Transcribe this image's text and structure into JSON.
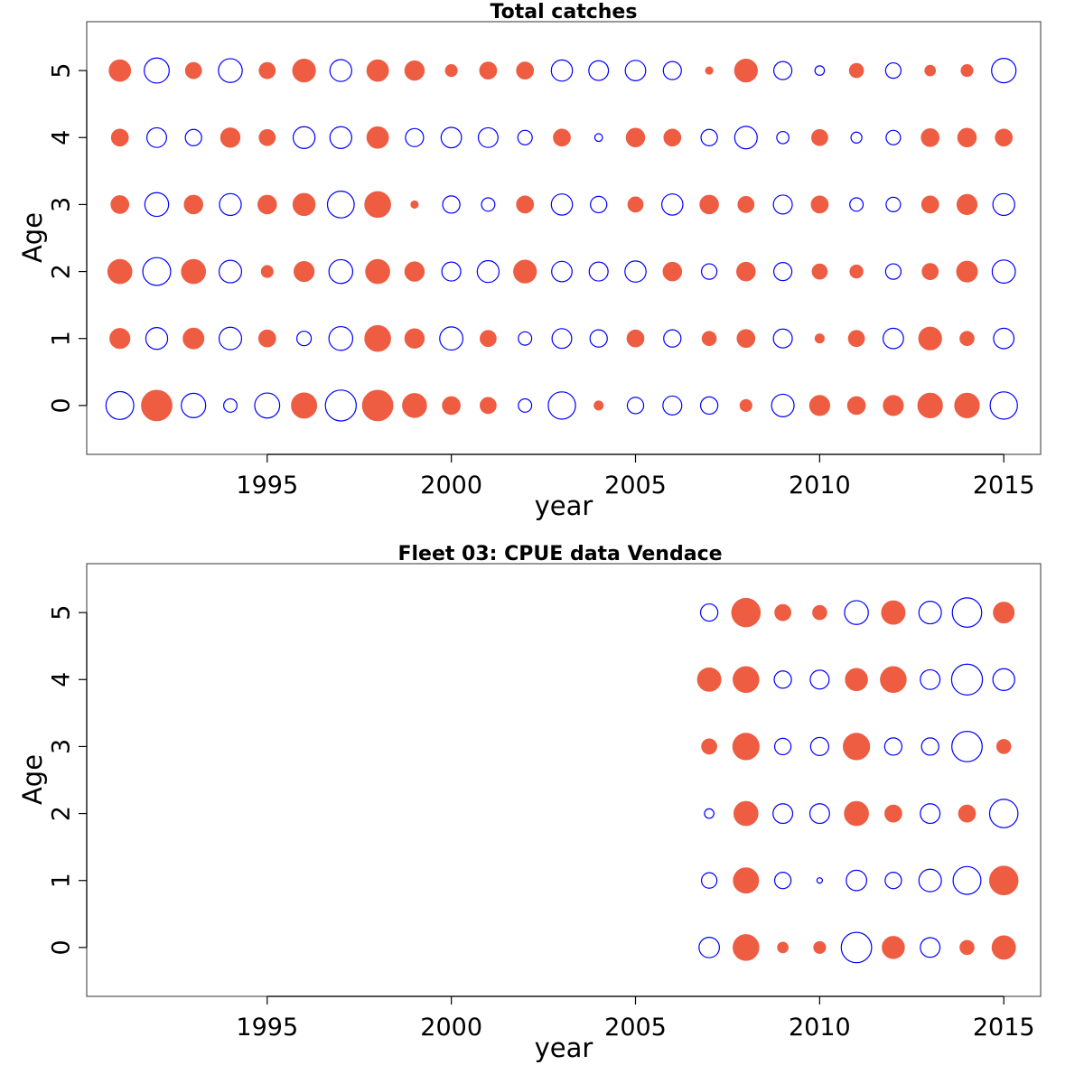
{
  "style": {
    "positive_color": "#EE5C42",
    "negative_color": "#0000FF",
    "frame_color": "#555555"
  },
  "chart_data": [
    {
      "type": "scatter",
      "subtype": "bubble",
      "title": "Total catches",
      "xlabel": "year",
      "ylabel": "Age",
      "xlim": [
        1990.1,
        2016.0
      ],
      "ylim": [
        -0.73,
        5.73
      ],
      "x_ticks": [
        1995,
        2000,
        2005,
        2010,
        2015
      ],
      "x_tick_labels": [
        "1995",
        "2000",
        "2005",
        "2010",
        "2015"
      ],
      "y_ticks": [
        0,
        1,
        2,
        3,
        4,
        5
      ],
      "y_tick_labels": [
        "0",
        "1",
        "2",
        "3",
        "4",
        "5"
      ],
      "grid": false,
      "legend": "none",
      "encoding": "residual magnitude as circle size; positive = filled red, negative = open blue",
      "years": [
        1991,
        1992,
        1993,
        1994,
        1995,
        1996,
        1997,
        1998,
        1999,
        2000,
        2001,
        2002,
        2003,
        2004,
        2005,
        2006,
        2007,
        2008,
        2009,
        2010,
        2011,
        2012,
        2013,
        2014,
        2015
      ],
      "ages": [
        0,
        1,
        2,
        3,
        4,
        5
      ],
      "residuals": [
        [
          -1.3,
          1.6,
          -1.0,
          -0.3,
          -1.05,
          1.1,
          -1.6,
          1.6,
          1.0,
          0.55,
          0.45,
          -0.3,
          -1.25,
          0.15,
          -0.45,
          -0.6,
          -0.5,
          0.25,
          -0.85,
          0.7,
          0.55,
          0.7,
          1.05,
          1.05,
          -1.25
        ],
        [
          0.7,
          -0.8,
          0.75,
          -0.85,
          0.5,
          -0.35,
          -0.95,
          1.15,
          0.65,
          -0.9,
          0.45,
          -0.3,
          -0.65,
          -0.5,
          0.5,
          -0.5,
          0.35,
          0.55,
          -0.6,
          0.15,
          0.45,
          -0.7,
          0.9,
          0.35,
          -0.7
        ],
        [
          1.0,
          -1.3,
          1.0,
          -0.85,
          0.25,
          0.7,
          -0.95,
          1.0,
          0.65,
          -0.6,
          -0.8,
          0.9,
          -0.7,
          -0.6,
          -0.75,
          0.6,
          -0.4,
          0.6,
          -0.55,
          0.4,
          0.3,
          -0.4,
          0.45,
          0.75,
          -0.9
        ],
        [
          0.55,
          -0.95,
          0.6,
          -0.8,
          0.6,
          0.85,
          -1.2,
          1.15,
          0.1,
          -0.5,
          -0.3,
          0.5,
          -0.75,
          -0.45,
          0.4,
          -0.75,
          0.6,
          0.45,
          -0.6,
          0.5,
          -0.3,
          -0.35,
          0.5,
          0.7,
          -0.8
        ],
        [
          0.5,
          -0.65,
          -0.45,
          0.65,
          0.45,
          -0.8,
          -0.8,
          0.8,
          -0.55,
          -0.7,
          -0.65,
          -0.35,
          0.5,
          -0.1,
          0.6,
          0.5,
          -0.45,
          -0.85,
          -0.25,
          0.45,
          -0.2,
          -0.35,
          0.55,
          0.6,
          0.5
        ],
        [
          0.8,
          -1.05,
          0.45,
          -0.95,
          0.45,
          0.9,
          -0.8,
          0.8,
          0.65,
          0.25,
          0.5,
          0.5,
          -0.75,
          -0.65,
          -0.7,
          -0.55,
          0.1,
          0.9,
          -0.55,
          -0.15,
          0.35,
          -0.4,
          0.2,
          0.25,
          -1.0
        ]
      ]
    },
    {
      "type": "scatter",
      "subtype": "bubble",
      "title": "Fleet 03:  CPUE data Vendace",
      "xlabel": "year",
      "ylabel": "Age",
      "xlim": [
        1990.1,
        2016.0
      ],
      "ylim": [
        -0.73,
        5.73
      ],
      "x_ticks": [
        1995,
        2000,
        2005,
        2010,
        2015
      ],
      "x_tick_labels": [
        "1995",
        "2000",
        "2005",
        "2010",
        "2015"
      ],
      "y_ticks": [
        0,
        1,
        2,
        3,
        4,
        5
      ],
      "y_tick_labels": [
        "0",
        "1",
        "2",
        "3",
        "4",
        "5"
      ],
      "grid": false,
      "legend": "none",
      "encoding": "residual magnitude as circle size; positive = filled red, negative = open blue",
      "years": [
        2007,
        2008,
        2009,
        2010,
        2011,
        2012,
        2013,
        2014,
        2015
      ],
      "ages": [
        0,
        1,
        2,
        3,
        4,
        5
      ],
      "residuals": [
        [
          -0.7,
          1.15,
          0.2,
          0.25,
          -1.55,
          0.85,
          -0.65,
          0.35,
          0.95
        ],
        [
          -0.4,
          1.1,
          -0.45,
          -0.05,
          -0.7,
          -0.45,
          -0.85,
          -1.3,
          1.4
        ],
        [
          -0.15,
          1.0,
          -0.65,
          -0.65,
          1.0,
          0.5,
          -0.65,
          0.5,
          -1.35
        ],
        [
          0.4,
          1.2,
          -0.45,
          -0.55,
          1.2,
          -0.5,
          -0.5,
          -1.55,
          0.35
        ],
        [
          0.95,
          1.15,
          -0.5,
          -0.6,
          0.85,
          1.15,
          -0.65,
          -1.6,
          -0.8
        ],
        [
          -0.5,
          1.4,
          0.45,
          0.35,
          -0.95,
          0.95,
          -0.85,
          -1.45,
          0.75
        ]
      ]
    }
  ]
}
